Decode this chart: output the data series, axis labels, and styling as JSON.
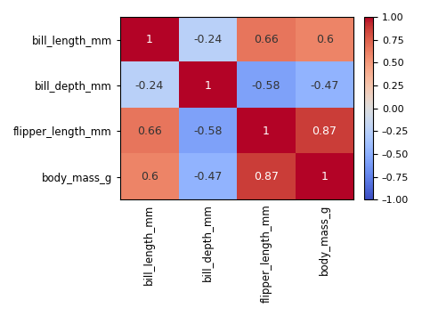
{
  "labels": [
    "bill_length_mm",
    "bill_depth_mm",
    "flipper_length_mm",
    "body_mass_g"
  ],
  "matrix": [
    [
      1.0,
      -0.24,
      0.66,
      0.6
    ],
    [
      -0.24,
      1.0,
      -0.58,
      -0.47
    ],
    [
      0.66,
      -0.58,
      1.0,
      0.87
    ],
    [
      0.6,
      -0.47,
      0.87,
      1.0
    ]
  ],
  "vmin": -1.0,
  "vmax": 1.0,
  "cmap": "coolwarm",
  "colorbar_ticks": [
    1.0,
    0.75,
    0.5,
    0.25,
    0.0,
    -0.25,
    -0.5,
    -0.75,
    -1.0
  ],
  "colorbar_ticklabels": [
    "1.00",
    "0.75",
    "0.50",
    "0.25",
    "0.00",
    "–0.25",
    "–0.50",
    "–0.75",
    "–1.00"
  ],
  "text_fontsize": 9,
  "tick_fontsize": 8.5,
  "background_color": "white",
  "figsize": [
    4.74,
    3.55
  ],
  "dpi": 100
}
